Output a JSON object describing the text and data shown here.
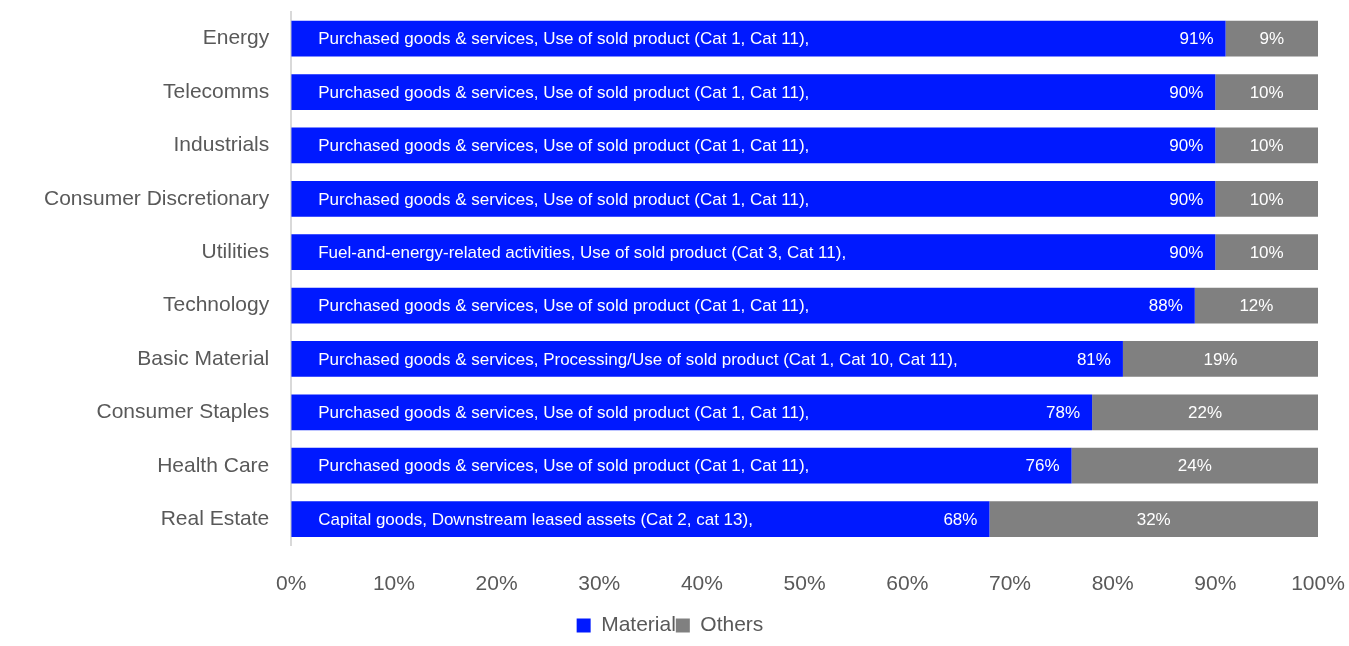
{
  "chart_data": {
    "type": "bar",
    "orientation": "horizontal",
    "stacked": true,
    "categories": [
      "Energy",
      "Telecomms",
      "Industrials",
      "Consumer Discretionary",
      "Utilities",
      "Technology",
      "Basic Material",
      "Consumer Staples",
      "Health Care",
      "Real Estate"
    ],
    "series": [
      {
        "name": "Material",
        "color": "#0019ff",
        "values": [
          91,
          90,
          90,
          90,
          90,
          88,
          81,
          78,
          76,
          68
        ],
        "value_labels": [
          "91%",
          "90%",
          "90%",
          "90%",
          "90%",
          "88%",
          "81%",
          "78%",
          "76%",
          "68%"
        ]
      },
      {
        "name": "Others",
        "color": "#808080",
        "values": [
          9,
          10,
          10,
          10,
          10,
          12,
          19,
          22,
          24,
          32
        ],
        "value_labels": [
          "9%",
          "10%",
          "10%",
          "10%",
          "10%",
          "12%",
          "19%",
          "22%",
          "24%",
          "32%"
        ]
      }
    ],
    "xlim": [
      0,
      100
    ],
    "xticks": [
      {
        "value": 0,
        "label": "0%"
      },
      {
        "value": 10,
        "label": "10%"
      },
      {
        "value": 20,
        "label": "20%"
      },
      {
        "value": 30,
        "label": "30%"
      },
      {
        "value": 40,
        "label": "40%"
      },
      {
        "value": 50,
        "label": "50%"
      },
      {
        "value": 60,
        "label": "60%"
      },
      {
        "value": 70,
        "label": "70%"
      },
      {
        "value": 80,
        "label": "80%"
      },
      {
        "value": 90,
        "label": "90%"
      },
      {
        "value": 100,
        "label": "100%"
      }
    ],
    "legend": "bottom",
    "annotations": [
      {
        "text": "Purchased goods & services, Use of sold product (Cat 1, Cat 11),",
        "y": "Energy"
      },
      {
        "text": "Purchased goods & services, Use of sold product (Cat 1, Cat 11),",
        "y": "Telecomms"
      },
      {
        "text": "Purchased goods & services, Use of sold product (Cat 1, Cat 11),",
        "y": "Industrials"
      },
      {
        "text": "Purchased goods & services, Use of sold product (Cat 1, Cat 11),",
        "y": "Consumer Discretionary"
      },
      {
        "text": "Fuel-and-energy-related activities, Use of sold product (Cat 3, Cat 11),",
        "y": "Utilities"
      },
      {
        "text": "Purchased goods & services, Use of sold product (Cat 1, Cat 11),",
        "y": "Technology"
      },
      {
        "text": "Purchased goods & services, Processing/Use of sold product (Cat 1, Cat 10, Cat 11),",
        "y": "Basic Material"
      },
      {
        "text": "Purchased goods & services, Use of sold product (Cat 1, Cat 11),",
        "y": "Consumer Staples"
      },
      {
        "text": "Purchased goods & services, Use of sold product (Cat 1, Cat 11),",
        "y": "Health Care"
      },
      {
        "text": "Capital goods, Downstream leased assets (Cat 2, cat 13),",
        "y": "Real Estate"
      }
    ]
  }
}
